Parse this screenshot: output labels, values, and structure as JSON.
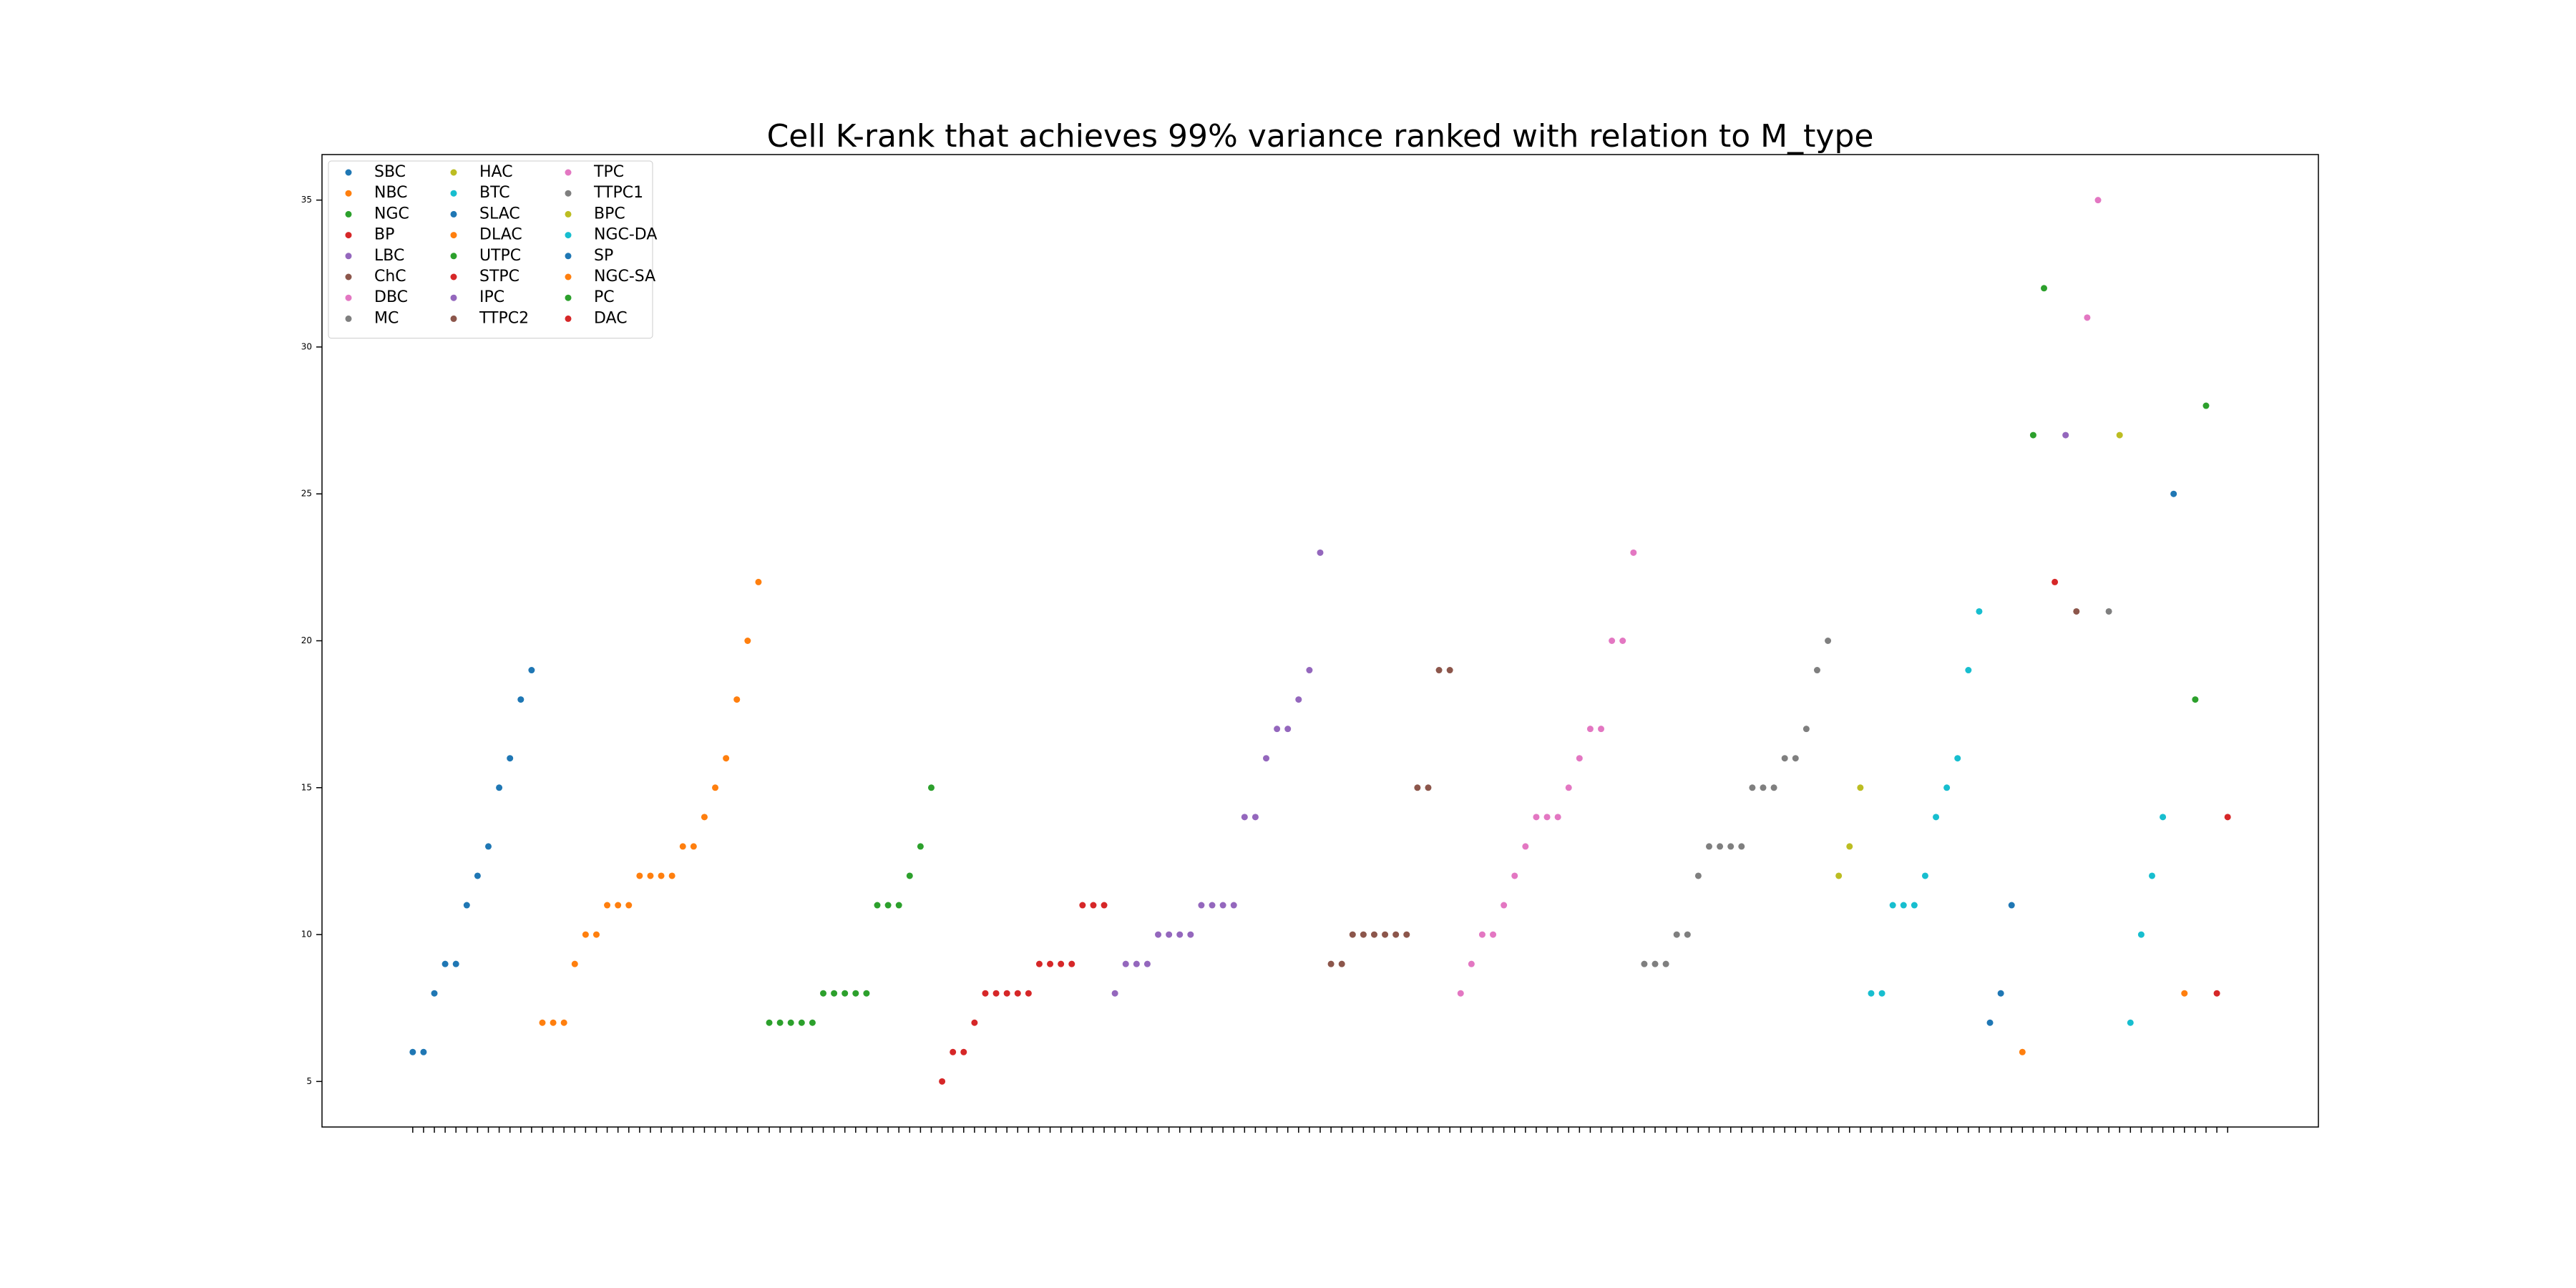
{
  "chart_data": {
    "type": "scatter",
    "title": "Cell K-rank that achieves 99% variance ranked with relation to M_type",
    "categories": [
      null,
      null,
      null,
      null,
      null,
      null,
      null,
      null,
      null,
      null,
      null,
      null,
      null,
      null,
      null,
      null,
      null,
      null,
      null,
      null,
      null,
      null,
      null,
      null,
      null,
      null,
      null,
      null,
      null,
      null,
      null,
      null,
      null,
      null,
      null,
      null,
      null,
      null,
      null,
      null,
      null,
      null,
      null,
      null,
      null,
      null,
      null,
      null,
      null,
      null,
      null,
      null,
      null,
      null,
      null,
      null,
      null,
      null,
      null,
      null,
      null,
      null,
      null,
      null,
      null,
      null,
      null,
      null,
      null,
      null,
      null,
      null,
      null,
      null,
      null,
      null,
      null,
      null,
      null,
      null,
      null,
      null,
      null,
      null,
      null,
      null,
      null,
      null,
      null,
      null,
      null,
      null,
      null,
      null,
      null,
      null,
      null,
      null,
      null,
      null,
      null,
      null,
      null,
      null,
      null,
      null,
      null,
      null,
      null,
      null,
      null,
      null,
      null,
      null,
      null,
      null,
      null,
      null,
      null,
      null,
      null,
      null,
      null,
      null,
      null,
      null,
      null,
      null,
      null,
      null,
      null,
      null,
      null,
      null,
      null,
      null,
      null,
      null,
      null,
      null,
      null,
      null,
      null,
      null,
      null,
      null,
      null,
      null,
      null,
      null,
      null,
      null,
      null,
      null,
      null,
      null,
      null,
      null,
      null,
      null,
      null,
      null,
      null,
      null,
      null,
      null,
      null,
      null,
      null
    ],
    "ylim": [
      3.45,
      36.55
    ],
    "yticks": [
      5,
      10,
      15,
      20,
      25,
      30,
      35
    ],
    "grid": false,
    "legend": "upper left",
    "series": [
      {
        "name": "SBC",
        "color": "#1f77b4",
        "values": [
          6,
          6,
          8,
          9,
          9,
          11,
          12,
          13,
          15,
          16,
          18,
          19
        ]
      },
      {
        "name": "NBC",
        "color": "#ff7f0e",
        "values": [
          7,
          7,
          7,
          9,
          10,
          10,
          11,
          11,
          11,
          12,
          12,
          12,
          12,
          13,
          13,
          14,
          15,
          16,
          18,
          20,
          22
        ]
      },
      {
        "name": "NGC",
        "color": "#2ca02c",
        "values": [
          7,
          7,
          7,
          7,
          7,
          8,
          8,
          8,
          8,
          8,
          11,
          11,
          11,
          12,
          13,
          15
        ]
      },
      {
        "name": "BP",
        "color": "#d62728",
        "values": [
          5,
          6,
          6,
          7,
          8,
          8,
          8,
          8,
          8,
          9,
          9,
          9,
          9,
          11,
          11,
          11
        ]
      },
      {
        "name": "LBC",
        "color": "#9467bd",
        "values": [
          8,
          9,
          9,
          9,
          10,
          10,
          10,
          10,
          11,
          11,
          11,
          11,
          14,
          14,
          16,
          17,
          17,
          18,
          19,
          23
        ]
      },
      {
        "name": "ChC",
        "color": "#8c564b",
        "values": [
          9,
          9,
          10,
          10,
          10,
          10,
          10,
          10,
          15,
          15,
          19,
          19
        ]
      },
      {
        "name": "DBC",
        "color": "#e377c2",
        "values": [
          8,
          9,
          10,
          10,
          11,
          12,
          13,
          14,
          14,
          14,
          15,
          16,
          17,
          17,
          20,
          20,
          23
        ]
      },
      {
        "name": "MC",
        "color": "#7f7f7f",
        "values": [
          9,
          9,
          9,
          10,
          10,
          12,
          13,
          13,
          13,
          13,
          15,
          15,
          15,
          16,
          16,
          17,
          19,
          20
        ]
      },
      {
        "name": "HAC",
        "color": "#bcbd22",
        "values": [
          12,
          13,
          15
        ]
      },
      {
        "name": "BTC",
        "color": "#17becf",
        "values": [
          8,
          8,
          11,
          11,
          11,
          12,
          14,
          15,
          16,
          19,
          21
        ]
      },
      {
        "name": "SLAC",
        "color": "#1f77b4",
        "values": [
          7,
          8,
          11
        ]
      },
      {
        "name": "DLAC",
        "color": "#ff7f0e",
        "values": [
          6
        ]
      },
      {
        "name": "UTPC",
        "color": "#2ca02c",
        "values": [
          27,
          32
        ]
      },
      {
        "name": "STPC",
        "color": "#d62728",
        "values": [
          22
        ]
      },
      {
        "name": "IPC",
        "color": "#9467bd",
        "values": [
          27
        ]
      },
      {
        "name": "TTPC2",
        "color": "#8c564b",
        "values": [
          21
        ]
      },
      {
        "name": "TPC",
        "color": "#e377c2",
        "values": [
          31,
          35
        ]
      },
      {
        "name": "TTPC1",
        "color": "#7f7f7f",
        "values": [
          21
        ]
      },
      {
        "name": "BPC",
        "color": "#bcbd22",
        "values": [
          27
        ]
      },
      {
        "name": "NGC-DA",
        "color": "#17becf",
        "values": [
          7,
          10,
          12,
          14
        ]
      },
      {
        "name": "SP",
        "color": "#1f77b4",
        "values": [
          25
        ]
      },
      {
        "name": "NGC-SA",
        "color": "#ff7f0e",
        "values": [
          8
        ]
      },
      {
        "name": "PC",
        "color": "#2ca02c",
        "values": [
          18,
          28
        ]
      },
      {
        "name": "DAC",
        "color": "#d62728",
        "values": [
          8,
          14
        ]
      }
    ]
  }
}
